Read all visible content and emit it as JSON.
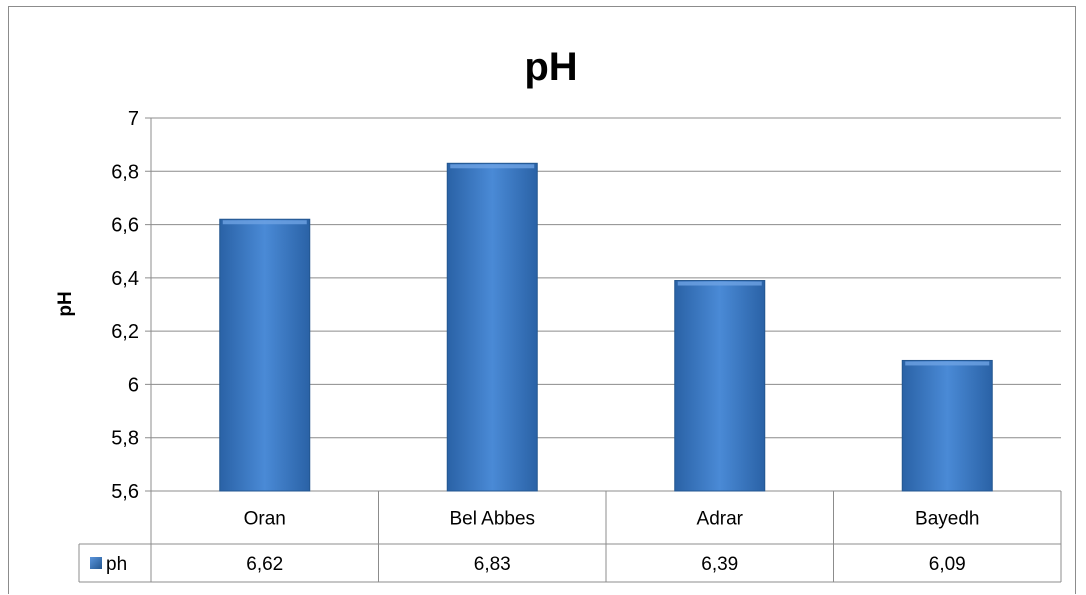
{
  "chart_data": {
    "type": "bar",
    "title": "pH",
    "ylabel": "pH",
    "xlabel": "",
    "categories": [
      "Oran",
      "Bel Abbes",
      "Adrar",
      "Bayedh"
    ],
    "series": [
      {
        "name": "ph",
        "values": [
          6.62,
          6.83,
          6.39,
          6.09
        ],
        "labels": [
          "6,62",
          "6,83",
          "6,39",
          "6,09"
        ]
      }
    ],
    "ylim": [
      5.6,
      7
    ],
    "yticks": [
      5.6,
      5.8,
      6,
      6.2,
      6.4,
      6.6,
      6.8,
      7
    ],
    "ytick_labels": [
      "5,6",
      "5,8",
      "6",
      "6,2",
      "6,4",
      "6,6",
      "6,8",
      "7"
    ],
    "grid": true,
    "legend": "data-table",
    "colors": {
      "bar": "#3f7fcc",
      "bar_dark": "#23568f",
      "bar_light": "#6ea3e3",
      "grid": "#8c8c8c"
    }
  }
}
